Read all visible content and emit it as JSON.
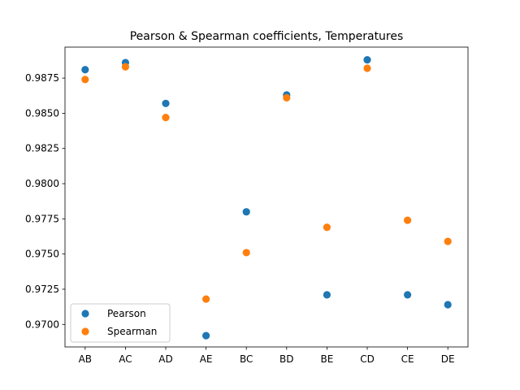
{
  "chart_data": {
    "type": "scatter",
    "title": "Pearson & Spearman coefficients, Temperatures",
    "xlabel": "",
    "ylabel": "",
    "categories": [
      "AB",
      "AC",
      "AD",
      "AE",
      "BC",
      "BD",
      "BE",
      "CD",
      "CE",
      "DE"
    ],
    "ylim": [
      0.9684,
      0.9897
    ],
    "yticks": [
      0.97,
      0.9725,
      0.975,
      0.9775,
      0.98,
      0.9825,
      0.985,
      0.9875
    ],
    "ytick_labels": [
      "0.9700",
      "0.9725",
      "0.9750",
      "0.9775",
      "0.9800",
      "0.9825",
      "0.9850",
      "0.9875"
    ],
    "grid": false,
    "legend_position": "lower-left",
    "series": [
      {
        "name": "Pearson",
        "color": "#1f77b4",
        "values": [
          0.9881,
          0.9886,
          0.9857,
          0.9692,
          0.978,
          0.9863,
          0.9721,
          0.9888,
          0.9721,
          0.9714
        ]
      },
      {
        "name": "Spearman",
        "color": "#ff7f0e",
        "values": [
          0.9874,
          0.9883,
          0.9847,
          0.9718,
          0.9751,
          0.9861,
          0.9769,
          0.9882,
          0.9774,
          0.9759
        ]
      }
    ]
  }
}
